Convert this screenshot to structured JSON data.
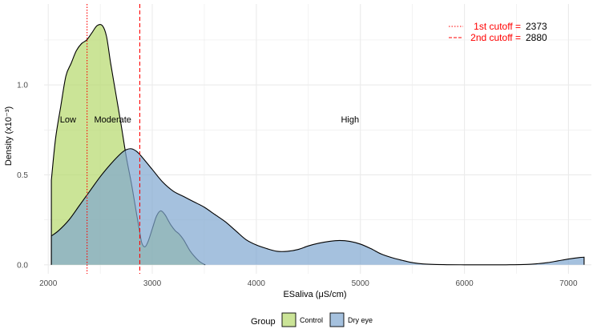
{
  "chart_data": {
    "type": "area",
    "xlabel": "ESaliva (μS/cm)",
    "ylabel": "Density (x10⁻³)",
    "xlim": [
      1960,
      7220
    ],
    "ylim": [
      -0.05,
      1.45
    ],
    "x_ticks": [
      2000,
      3000,
      4000,
      5000,
      6000,
      7000
    ],
    "x_tick_labels": [
      "2000",
      "3000",
      "4000",
      "5000",
      "6000",
      "7000"
    ],
    "y_ticks": [
      0.0,
      0.5,
      1.0
    ],
    "y_tick_labels": [
      "0.0",
      "0.5",
      "1.0"
    ],
    "grid": true,
    "legend_position": "bottom",
    "legend_title": "Group",
    "series": [
      {
        "name": "Control",
        "color": "#b5d96b",
        "x": [
          2030,
          2070,
          2120,
          2170,
          2220,
          2270,
          2320,
          2370,
          2420,
          2470,
          2520,
          2560,
          2600,
          2650,
          2700,
          2750,
          2800,
          2850,
          2880,
          2900,
          2930,
          2960,
          3000,
          3040,
          3080,
          3120,
          3150,
          3180,
          3220,
          3260,
          3300,
          3330,
          3360,
          3400,
          3450,
          3490,
          3510
        ],
        "y": [
          0.47,
          0.7,
          0.88,
          1.05,
          1.12,
          1.19,
          1.23,
          1.25,
          1.29,
          1.33,
          1.33,
          1.27,
          1.12,
          0.95,
          0.78,
          0.6,
          0.45,
          0.28,
          0.18,
          0.12,
          0.1,
          0.13,
          0.2,
          0.27,
          0.3,
          0.28,
          0.25,
          0.22,
          0.19,
          0.17,
          0.14,
          0.11,
          0.08,
          0.05,
          0.02,
          0.005,
          0.0
        ]
      },
      {
        "name": "Dry eye",
        "color": "#7fa7d0",
        "x": [
          2030,
          2100,
          2200,
          2300,
          2400,
          2500,
          2600,
          2700,
          2750,
          2800,
          2850,
          2900,
          3000,
          3100,
          3200,
          3300,
          3400,
          3500,
          3600,
          3700,
          3800,
          3900,
          4000,
          4100,
          4200,
          4300,
          4400,
          4500,
          4600,
          4700,
          4800,
          4900,
          5000,
          5100,
          5200,
          5300,
          5400,
          5500,
          5600,
          5800,
          6000,
          6200,
          6400,
          6600,
          6700,
          6800,
          6900,
          7000,
          7100,
          7150
        ],
        "y": [
          0.16,
          0.19,
          0.25,
          0.33,
          0.41,
          0.49,
          0.56,
          0.62,
          0.64,
          0.645,
          0.63,
          0.6,
          0.53,
          0.46,
          0.41,
          0.38,
          0.35,
          0.32,
          0.28,
          0.24,
          0.19,
          0.14,
          0.11,
          0.09,
          0.075,
          0.075,
          0.085,
          0.105,
          0.12,
          0.13,
          0.135,
          0.13,
          0.115,
          0.09,
          0.06,
          0.04,
          0.025,
          0.012,
          0.005,
          0.001,
          0.0,
          0.0,
          0.0,
          0.002,
          0.006,
          0.012,
          0.022,
          0.032,
          0.04,
          0.042
        ]
      }
    ],
    "cutoffs": [
      {
        "label": "1st cutoff =",
        "value": 2373,
        "value_text": "2373",
        "style": "dotted"
      },
      {
        "label": "2nd cutoff =",
        "value": 2880,
        "value_text": "2880",
        "style": "dashed"
      }
    ],
    "region_labels": [
      {
        "text": "Low",
        "x": 2190,
        "y": 0.81
      },
      {
        "text": "Moderate",
        "x": 2620,
        "y": 0.81
      },
      {
        "text": "High",
        "x": 4900,
        "y": 0.81
      }
    ],
    "colors": {
      "cutoff": "#ff0000",
      "grid": "#ebebeb",
      "outline": "#000000"
    }
  }
}
